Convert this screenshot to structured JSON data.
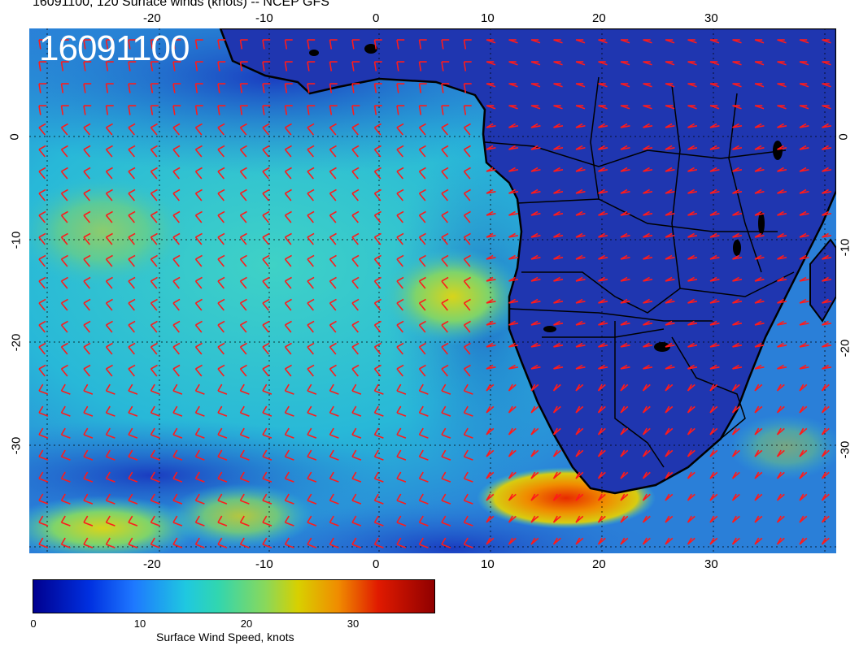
{
  "header": {
    "title": "16091100, 120 Surface winds (knots) -- NCEP GFS"
  },
  "map": {
    "date_overlay": "16091100",
    "lon_ticks": [
      "-20",
      "-10",
      "0",
      "10",
      "20",
      "30"
    ],
    "lat_ticks": [
      "0",
      "-10",
      "-20",
      "-30"
    ],
    "barb_color": "#ff1a1a",
    "land_outline_color": "#000000",
    "ocean_base_color": "#1d3fb8"
  },
  "colorbar": {
    "ticks": [
      "0",
      "10",
      "20",
      "30"
    ],
    "label": "Surface Wind Speed, knots"
  }
}
